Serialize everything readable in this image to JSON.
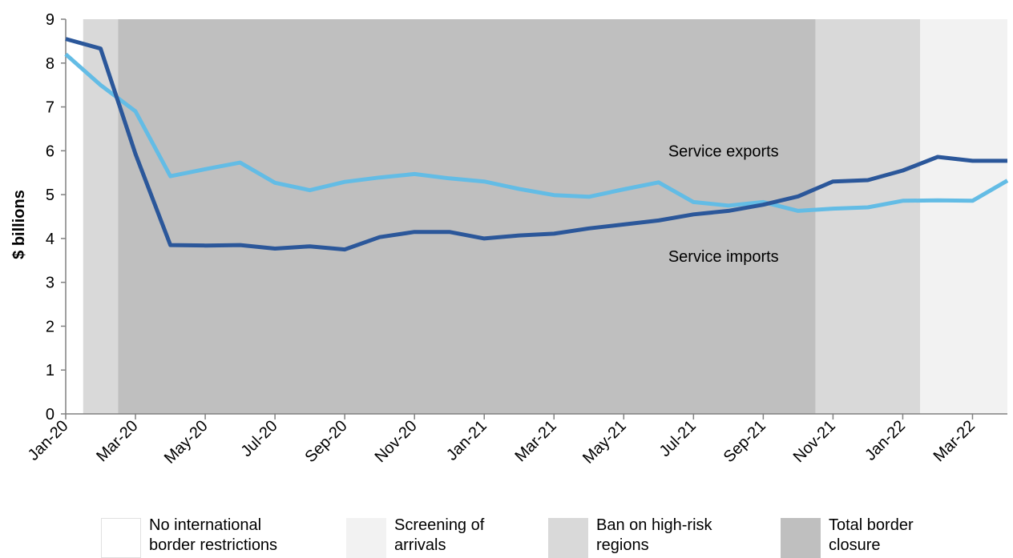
{
  "chart_data": {
    "type": "line",
    "title": "",
    "xlabel": "",
    "ylabel": "$ billions",
    "ylim": [
      0,
      9
    ],
    "yticks": [
      0,
      1,
      2,
      3,
      4,
      5,
      6,
      7,
      8,
      9
    ],
    "x": [
      "Jan-20",
      "Feb-20",
      "Mar-20",
      "Apr-20",
      "May-20",
      "Jun-20",
      "Jul-20",
      "Aug-20",
      "Sep-20",
      "Oct-20",
      "Nov-20",
      "Dec-20",
      "Jan-21",
      "Feb-21",
      "Mar-21",
      "Apr-21",
      "May-21",
      "Jun-21",
      "Jul-21",
      "Aug-21",
      "Sep-21",
      "Oct-21",
      "Nov-21",
      "Dec-21",
      "Jan-22",
      "Feb-22",
      "Mar-22",
      "Apr-22"
    ],
    "xtick_labels": [
      "Jan-20",
      "Mar-20",
      "May-20",
      "Jul-20",
      "Sep-20",
      "Nov-20",
      "Jan-21",
      "Mar-21",
      "May-21",
      "Jul-21",
      "Sep-21",
      "Nov-21",
      "Jan-22",
      "Mar-22"
    ],
    "series": [
      {
        "name": "Service exports",
        "color": "#63BCE5",
        "values": [
          8.2,
          7.5,
          6.9,
          5.42,
          5.58,
          5.73,
          5.27,
          5.1,
          5.29,
          5.39,
          5.47,
          5.37,
          5.3,
          5.13,
          4.99,
          4.95,
          5.12,
          5.28,
          4.83,
          4.75,
          4.83,
          4.63,
          4.68,
          4.71,
          4.86,
          4.87,
          4.86,
          5.32
        ]
      },
      {
        "name": "Service imports",
        "color": "#2B579A",
        "values": [
          8.55,
          8.33,
          5.93,
          3.85,
          3.84,
          3.85,
          3.77,
          3.82,
          3.75,
          4.03,
          4.15,
          4.15,
          4.0,
          4.07,
          4.11,
          4.23,
          4.32,
          4.41,
          4.55,
          4.63,
          4.77,
          4.96,
          5.3,
          5.33,
          5.55,
          5.86,
          5.77,
          5.77
        ]
      }
    ],
    "shaded_periods": [
      {
        "label": "No international border restrictions",
        "color": "#FFFFFF",
        "from": "Jan-20",
        "to": "Jan-20"
      },
      {
        "label": "Ban on high-risk regions",
        "color": "#D9D9D9",
        "from": "Jan-20",
        "to": "Feb-20"
      },
      {
        "label": "Total border closure",
        "color": "#BFBFBF",
        "from": "Feb-20",
        "to": "Oct-21"
      },
      {
        "label": "Ban on high-risk regions",
        "color": "#D9D9D9",
        "from": "Oct-21",
        "to": "Feb-22"
      },
      {
        "label": "Screening of arrivals",
        "color": "#F2F2F2",
        "from": "Feb-22",
        "to": "Apr-22"
      }
    ],
    "annotations": [
      {
        "text": "Service exports",
        "x": "Aug-21",
        "y": 6.0
      },
      {
        "text": "Service imports",
        "x": "Aug-21",
        "y": 3.6
      }
    ]
  },
  "legend": [
    {
      "label": "No international\nborder restrictions",
      "color": "#FFFFFF"
    },
    {
      "label": "Screening of\narrivals",
      "color": "#F2F2F2"
    },
    {
      "label": "Ban on high-risk\nregions",
      "color": "#D9D9D9"
    },
    {
      "label": "Total border\nclosure",
      "color": "#BFBFBF"
    }
  ]
}
